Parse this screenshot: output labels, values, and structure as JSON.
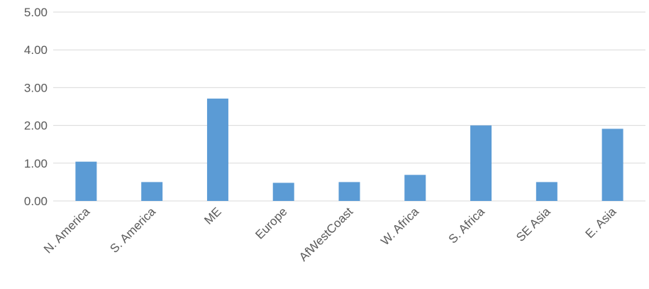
{
  "chart_data": {
    "type": "bar",
    "categories": [
      "N. America",
      "S. America",
      "ME",
      "Europe",
      "AfWestCoast",
      "W. Africa",
      "S. Africa",
      "SE Asia",
      "E. Asia"
    ],
    "values": [
      1.04,
      0.5,
      2.71,
      0.48,
      0.5,
      0.69,
      2.0,
      0.5,
      1.91
    ],
    "yticks": [
      "0.00",
      "1.00",
      "2.00",
      "3.00",
      "4.00",
      "5.00"
    ],
    "ylim": [
      0,
      5
    ],
    "grid": true,
    "bar_color": "#5b9bd5",
    "title": "",
    "xlabel": "",
    "ylabel": ""
  }
}
